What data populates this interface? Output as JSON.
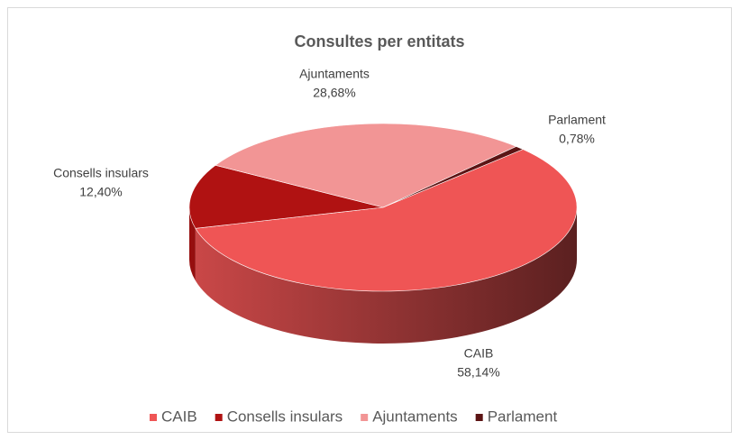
{
  "chart_data": {
    "type": "pie",
    "title": "Consultes per entitats",
    "categories": [
      "CAIB",
      "Consells insulars",
      "Ajuntaments",
      "Parlament"
    ],
    "values": [
      58.14,
      12.4,
      28.68,
      0.78
    ],
    "value_labels": [
      "58,14%",
      "12,40%",
      "28,68%",
      "0,78%"
    ],
    "colors": [
      "#ef5555",
      "#b01212",
      "#f29595",
      "#5c1414"
    ],
    "legend": "bottom"
  }
}
